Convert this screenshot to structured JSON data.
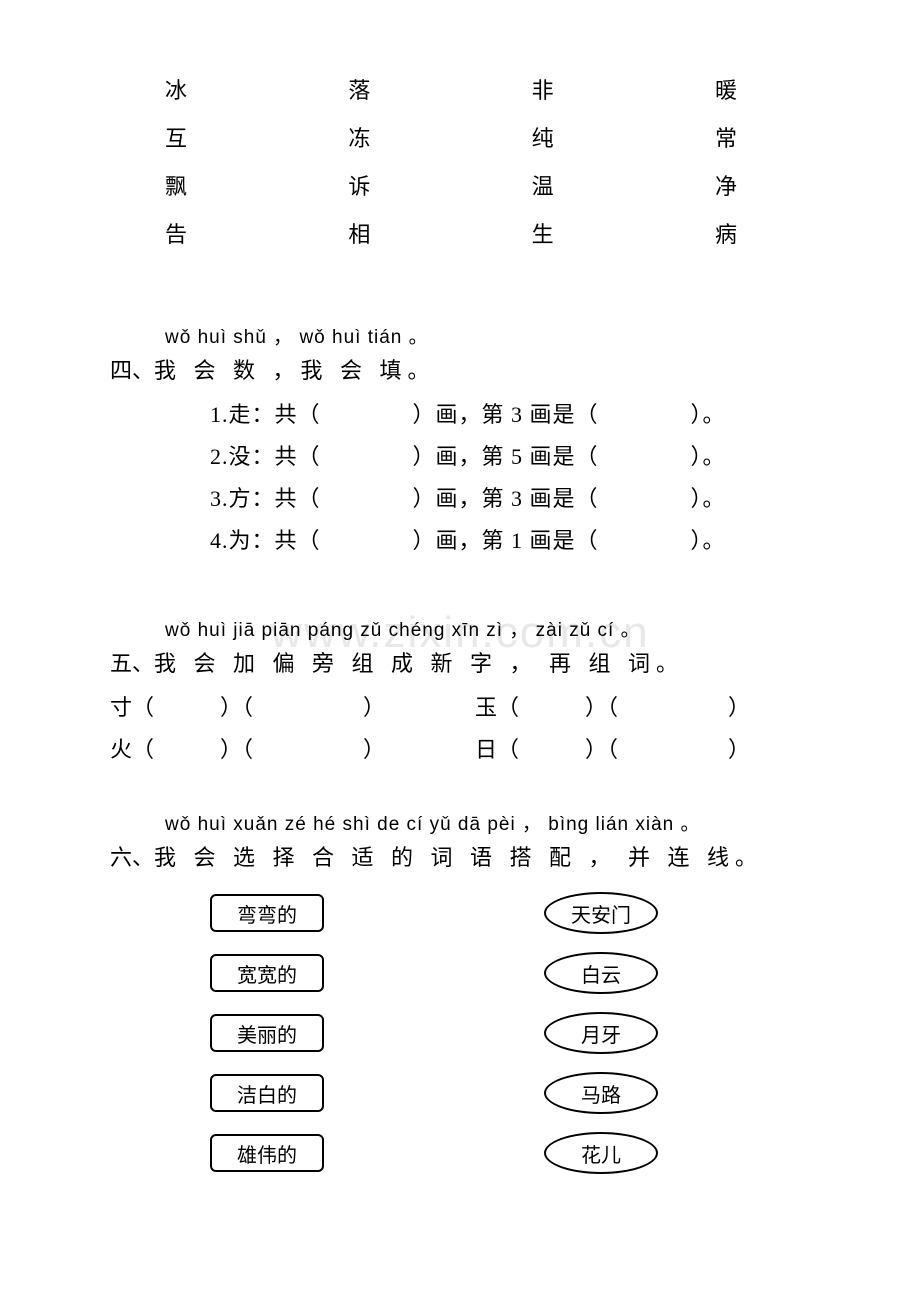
{
  "watermark": "www.zixin.com.cn",
  "char_grid": {
    "rows": [
      [
        "冰",
        "落",
        "非",
        "暖"
      ],
      [
        "互",
        "冻",
        "纯",
        "常"
      ],
      [
        "飘",
        "诉",
        "温",
        "净"
      ],
      [
        "告",
        "相",
        "生",
        "病"
      ]
    ]
  },
  "section4": {
    "pinyin": "wǒ huì shǔ ， wǒ  huì tián 。",
    "title_num": "四、",
    "title_text": "我 会  数 ，我  会  填。",
    "items": [
      {
        "idx": "1.",
        "char": "走",
        "stroke_q": "第 3 画是"
      },
      {
        "idx": "2.",
        "char": "没",
        "stroke_q": "第 5 画是"
      },
      {
        "idx": "3.",
        "char": "方",
        "stroke_q": "第 3 画是"
      },
      {
        "idx": "4.",
        "char": "为",
        "stroke_q": "第 1 画是"
      }
    ]
  },
  "section5": {
    "pinyin": "wǒ huì jiā piān pánɡ zǔ chénɡ xīn  zì ， zài  zǔ  cí 。",
    "title_num": "五、",
    "title_text": "我 会  加  偏  旁  组  成  新  字 ， 再   组  词。",
    "rows": [
      {
        "left": "寸",
        "right": "玉"
      },
      {
        "left": "火",
        "right": "日"
      }
    ]
  },
  "section6": {
    "pinyin": "wǒ huì xuǎn zé  hé shì de  cí  yǔ dā pèi ， bìnɡ lián xiàn 。",
    "title_num": "六、",
    "title_text": "我 会  选  择 合 适 的  词  语 搭  配 ， 并   连   线。",
    "left_items": [
      "弯弯的",
      "宽宽的",
      "美丽的",
      "洁白的",
      "雄伟的"
    ],
    "right_items": [
      "天安门",
      "白云",
      "月牙",
      "马路",
      "花儿"
    ]
  }
}
